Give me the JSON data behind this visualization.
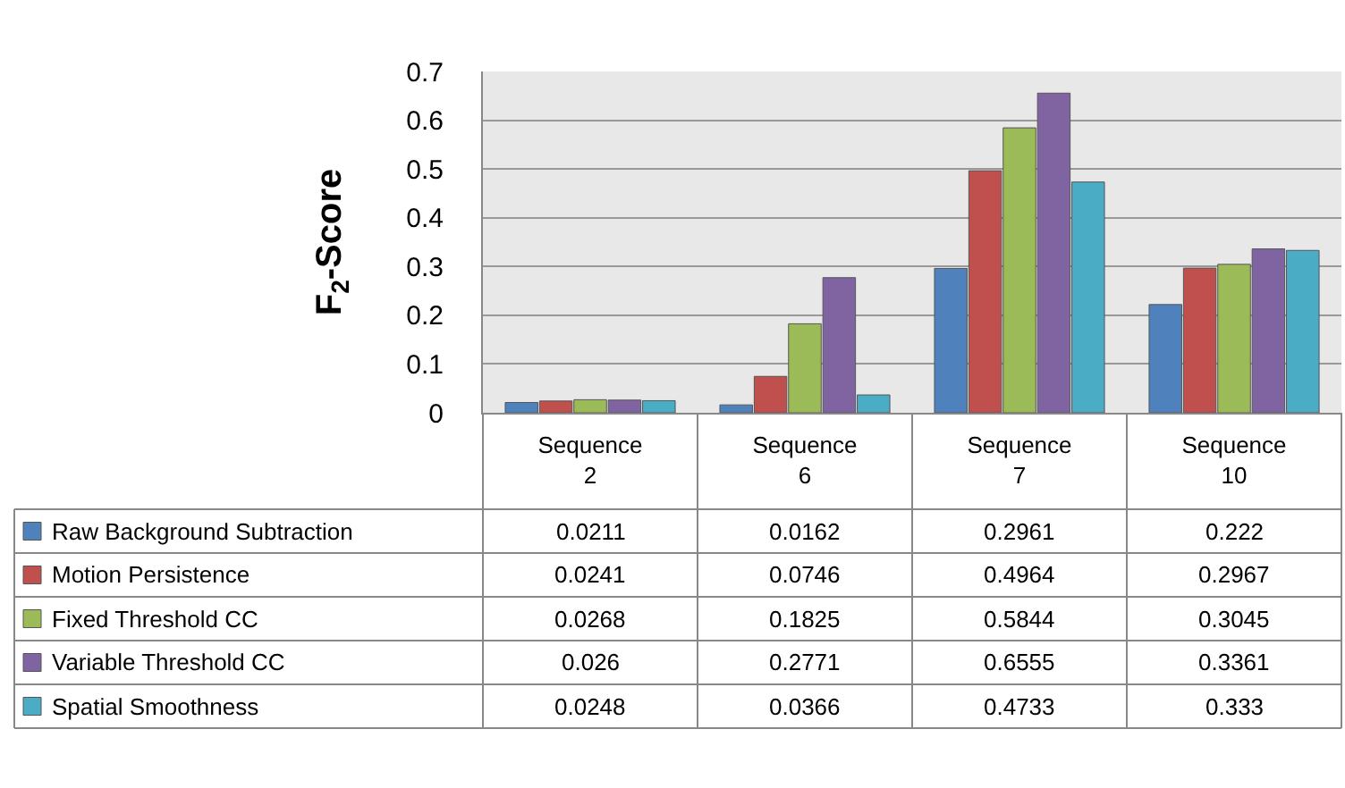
{
  "chart_data": {
    "type": "bar",
    "ylabel": "F$_{2}$-Score",
    "categories": [
      "Sequence\n2",
      "Sequence\n6",
      "Sequence\n7",
      "Sequence\n10"
    ],
    "series": [
      {
        "name": "Raw Background Subtraction",
        "color": "#4f81bd",
        "values": [
          0.0211,
          0.0162,
          0.2961,
          0.222
        ]
      },
      {
        "name": "Motion Persistence",
        "color": "#c0504d",
        "values": [
          0.0241,
          0.0746,
          0.4964,
          0.2967
        ]
      },
      {
        "name": "Fixed Threshold CC",
        "color": "#9bbb59",
        "values": [
          0.0268,
          0.1825,
          0.5844,
          0.3045
        ]
      },
      {
        "name": "Variable Threshold CC",
        "color": "#8064a2",
        "values": [
          0.026,
          0.2771,
          0.6555,
          0.3361
        ]
      },
      {
        "name": "Spatial Smoothness",
        "color": "#4bacc6",
        "values": [
          0.0248,
          0.0366,
          0.4733,
          0.333
        ]
      }
    ],
    "ylim": [
      0,
      0.7
    ],
    "yticks": [
      0,
      0.1,
      0.2,
      0.3,
      0.4,
      0.5,
      0.6,
      0.7
    ],
    "grid": "y",
    "data_labels": true,
    "legend": "bottom"
  }
}
